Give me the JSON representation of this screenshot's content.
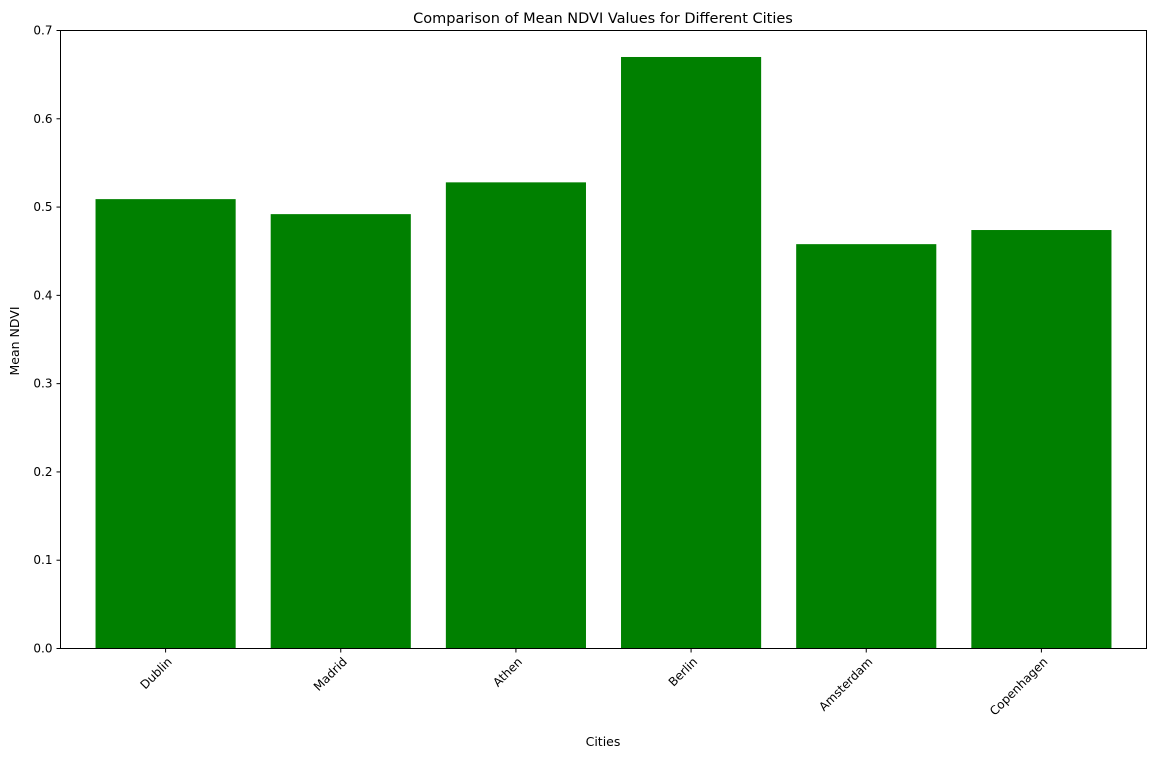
{
  "chart_data": {
    "type": "bar",
    "title": "Comparison of Mean NDVI Values for Different Cities",
    "xlabel": "Cities",
    "ylabel": "Mean NDVI",
    "categories": [
      "Dublin",
      "Madrid",
      "Athen",
      "Berlin",
      "Amsterdam",
      "Copenhagen"
    ],
    "values": [
      0.509,
      0.492,
      0.528,
      0.67,
      0.458,
      0.474
    ],
    "ylim": [
      0,
      0.7
    ],
    "yticks": [
      "0.0",
      "0.1",
      "0.2",
      "0.3",
      "0.4",
      "0.5",
      "0.6",
      "0.7"
    ],
    "bar_color": "#008000",
    "grid": false
  }
}
